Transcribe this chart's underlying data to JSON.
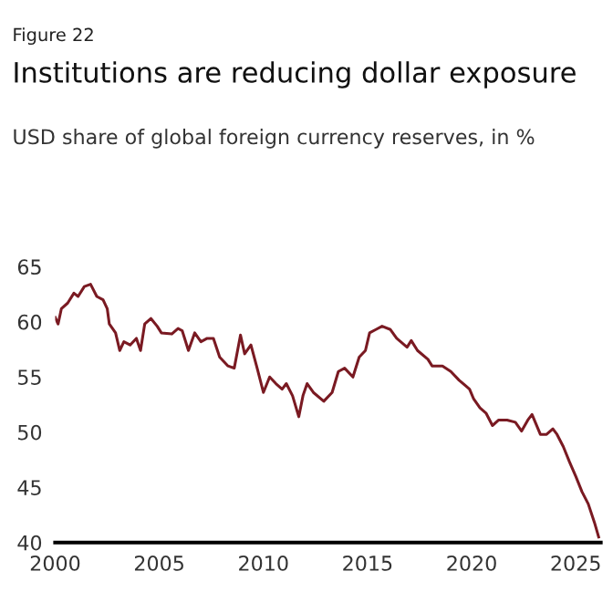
{
  "chart_data": {
    "type": "line",
    "title": "Institutions are reducing dollar exposure",
    "subtitle": "USD share of global foreign currency reserves, in %",
    "annotations": [
      "Figure 22"
    ],
    "x": [
      2000.0,
      2000.14,
      2000.3,
      2000.6,
      2000.9,
      2001.1,
      2001.4,
      2001.7,
      2002.0,
      2002.3,
      2002.5,
      2002.6,
      2002.9,
      2003.1,
      2003.3,
      2003.6,
      2003.9,
      2004.1,
      2004.3,
      2004.6,
      2004.9,
      2005.1,
      2005.6,
      2005.9,
      2006.1,
      2006.4,
      2006.7,
      2007.0,
      2007.3,
      2007.6,
      2007.9,
      2008.3,
      2008.6,
      2008.9,
      2009.1,
      2009.4,
      2009.7,
      2010.0,
      2010.3,
      2010.6,
      2010.9,
      2011.1,
      2011.4,
      2011.7,
      2011.9,
      2012.1,
      2012.4,
      2012.9,
      2013.3,
      2013.6,
      2013.9,
      2014.3,
      2014.6,
      2014.9,
      2015.1,
      2015.4,
      2015.7,
      2016.1,
      2016.4,
      2016.9,
      2017.1,
      2017.4,
      2017.9,
      2018.1,
      2018.6,
      2019.0,
      2019.4,
      2019.9,
      2020.1,
      2020.4,
      2020.7,
      2021.0,
      2021.3,
      2021.7,
      2022.1,
      2022.4,
      2022.7,
      2022.9,
      2023.3,
      2023.6,
      2023.9,
      2024.1,
      2024.4,
      2024.7,
      2025.0,
      2025.3,
      2025.6,
      2025.9,
      2026.1
    ],
    "series": [
      {
        "color": "#7a1a22",
        "values": [
          60.4,
          59.8,
          61.2,
          61.7,
          62.6,
          62.3,
          63.2,
          63.4,
          62.3,
          62.0,
          61.2,
          59.8,
          59.0,
          57.4,
          58.2,
          57.9,
          58.5,
          57.4,
          59.8,
          60.3,
          59.6,
          59.0,
          58.9,
          59.4,
          59.2,
          57.4,
          59.0,
          58.2,
          58.5,
          58.5,
          56.8,
          56.0,
          55.8,
          58.8,
          57.1,
          57.9,
          55.8,
          53.6,
          55.0,
          54.4,
          53.9,
          54.4,
          53.3,
          51.4,
          53.3,
          54.4,
          53.6,
          52.8,
          53.6,
          55.5,
          55.8,
          55.0,
          56.8,
          57.4,
          59.0,
          59.3,
          59.6,
          59.3,
          58.5,
          57.7,
          58.3,
          57.4,
          56.6,
          56.0,
          56.0,
          55.5,
          54.7,
          53.9,
          53.0,
          52.2,
          51.7,
          50.6,
          51.1,
          51.1,
          50.9,
          50.1,
          51.1,
          51.6,
          49.8,
          49.8,
          50.3,
          49.8,
          48.7,
          47.3,
          46.0,
          44.6,
          43.5,
          41.8,
          40.5
        ]
      }
    ],
    "xlim": [
      2000,
      2026.2
    ],
    "xticks": [
      2000,
      2005,
      2010,
      2015,
      2020,
      2025
    ],
    "ylim": [
      40,
      65
    ],
    "yticks": [
      40,
      45,
      50,
      55,
      60,
      65
    ],
    "grid": false,
    "legend": false
  }
}
